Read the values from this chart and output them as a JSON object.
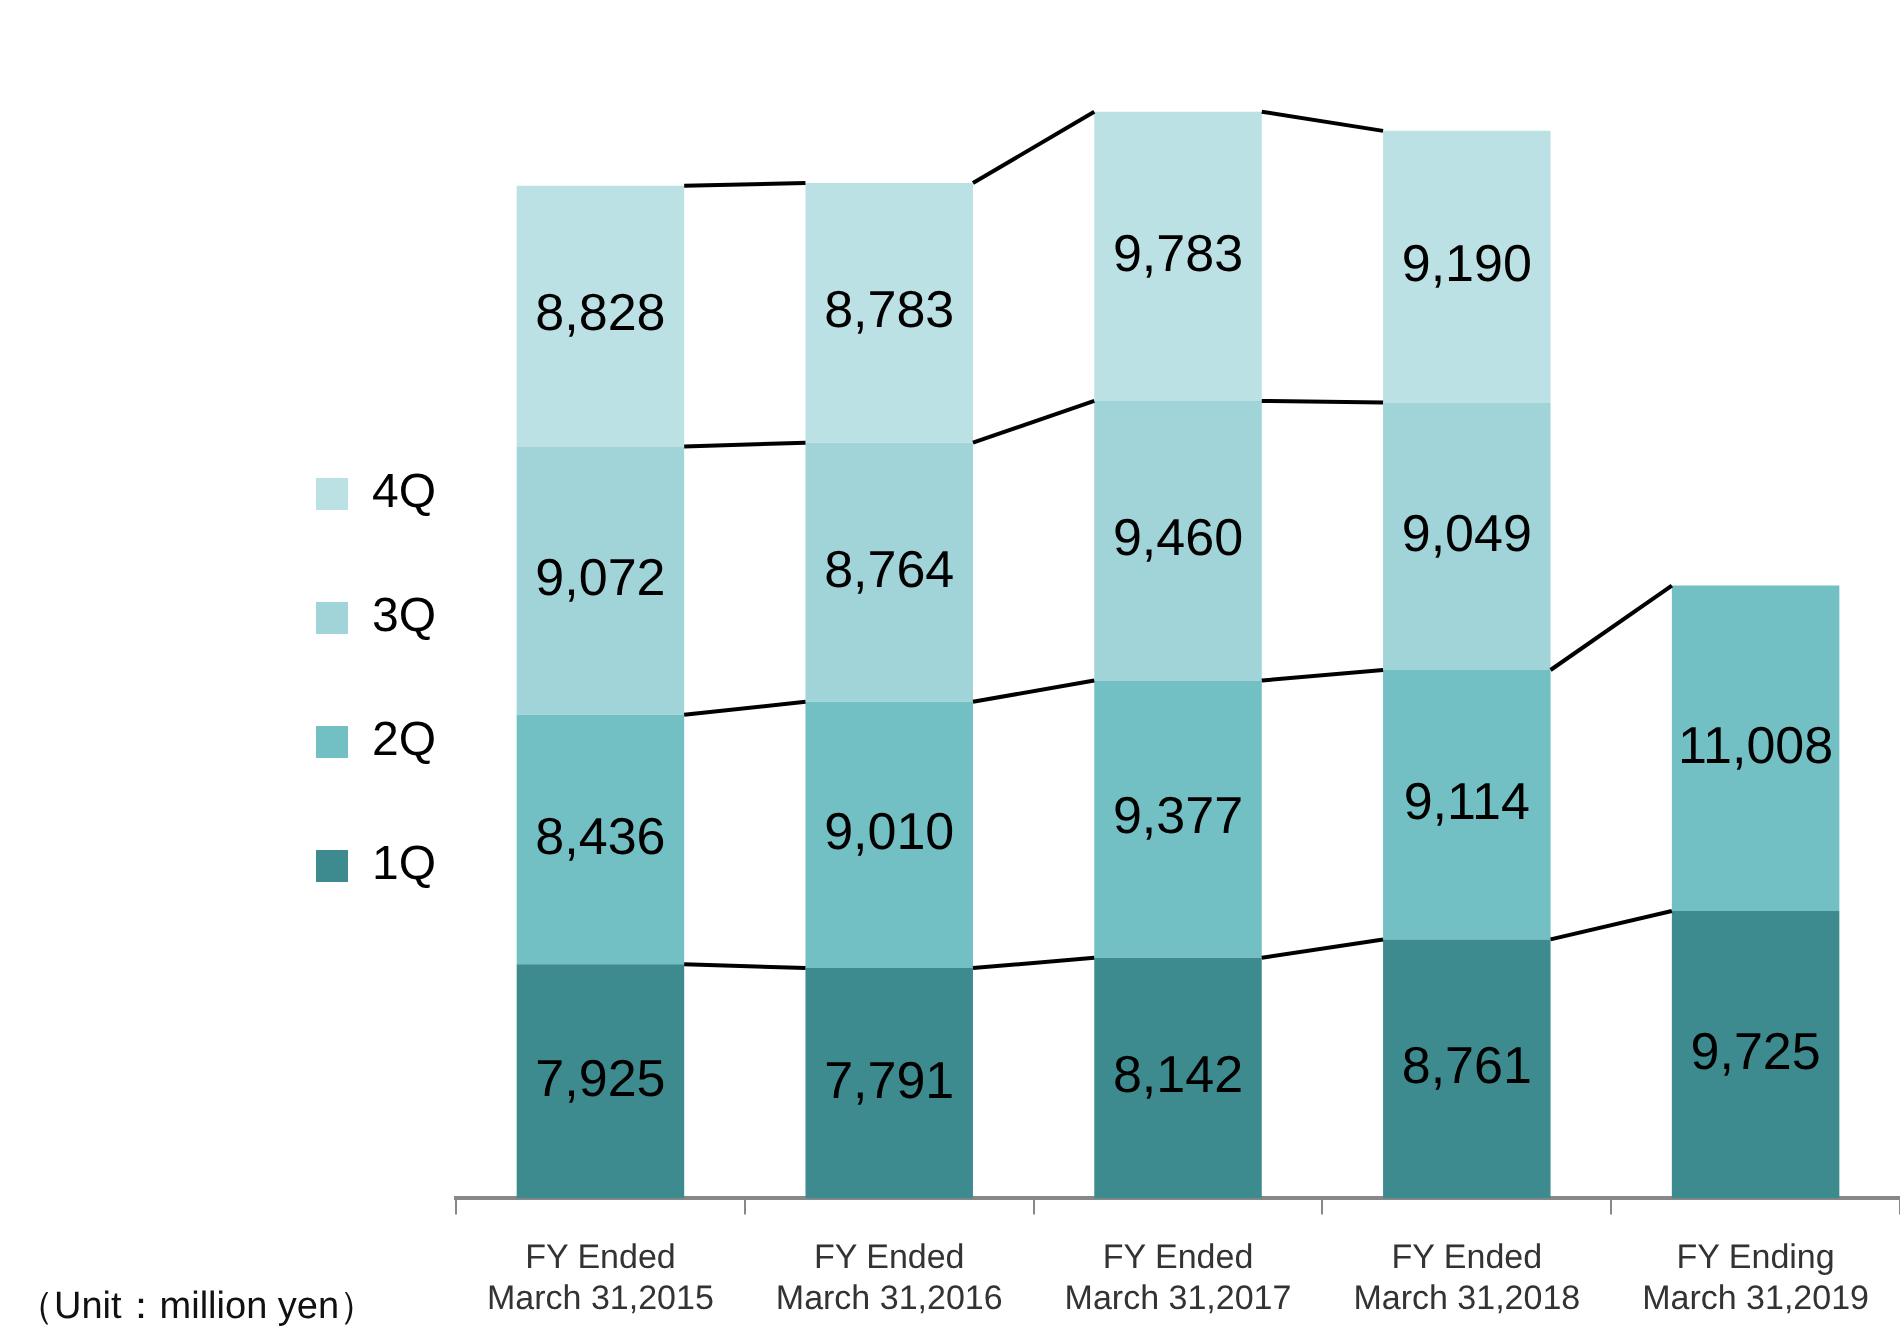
{
  "chart_data": {
    "type": "bar",
    "stacked": true,
    "legend": "left",
    "grid": false,
    "categories": [
      "FY Ended\nMarch 31,2015",
      "FY Ended\nMarch 31,2016",
      "FY Ended\nMarch 31,2017",
      "FY Ended\nMarch 31,2018",
      "FY Ending\nMarch 31,2019"
    ],
    "series": [
      {
        "name": "1Q",
        "color": "#3d8b8f",
        "values": [
          7925,
          7791,
          8142,
          8761,
          9725
        ],
        "value_labels": [
          "7,925",
          "7,791",
          "8,142",
          "8,761",
          "9,725"
        ]
      },
      {
        "name": "2Q",
        "color": "#72bfc4",
        "values": [
          8436,
          9010,
          9377,
          9114,
          11008
        ],
        "value_labels": [
          "8,436",
          "9,010",
          "9,377",
          "9,114",
          "11,008"
        ]
      },
      {
        "name": "3Q",
        "color": "#a0d4d8",
        "values": [
          9072,
          8764,
          9460,
          9049,
          null
        ],
        "value_labels": [
          "9,072",
          "8,764",
          "9,460",
          "9,049",
          null
        ]
      },
      {
        "name": "4Q",
        "color": "#bbe1e4",
        "values": [
          8828,
          8783,
          9783,
          9190,
          null
        ],
        "value_labels": [
          "8,828",
          "8,783",
          "9,783",
          "9,190",
          null
        ]
      }
    ],
    "annotations": [
      "（Unit：million yen）"
    ]
  }
}
